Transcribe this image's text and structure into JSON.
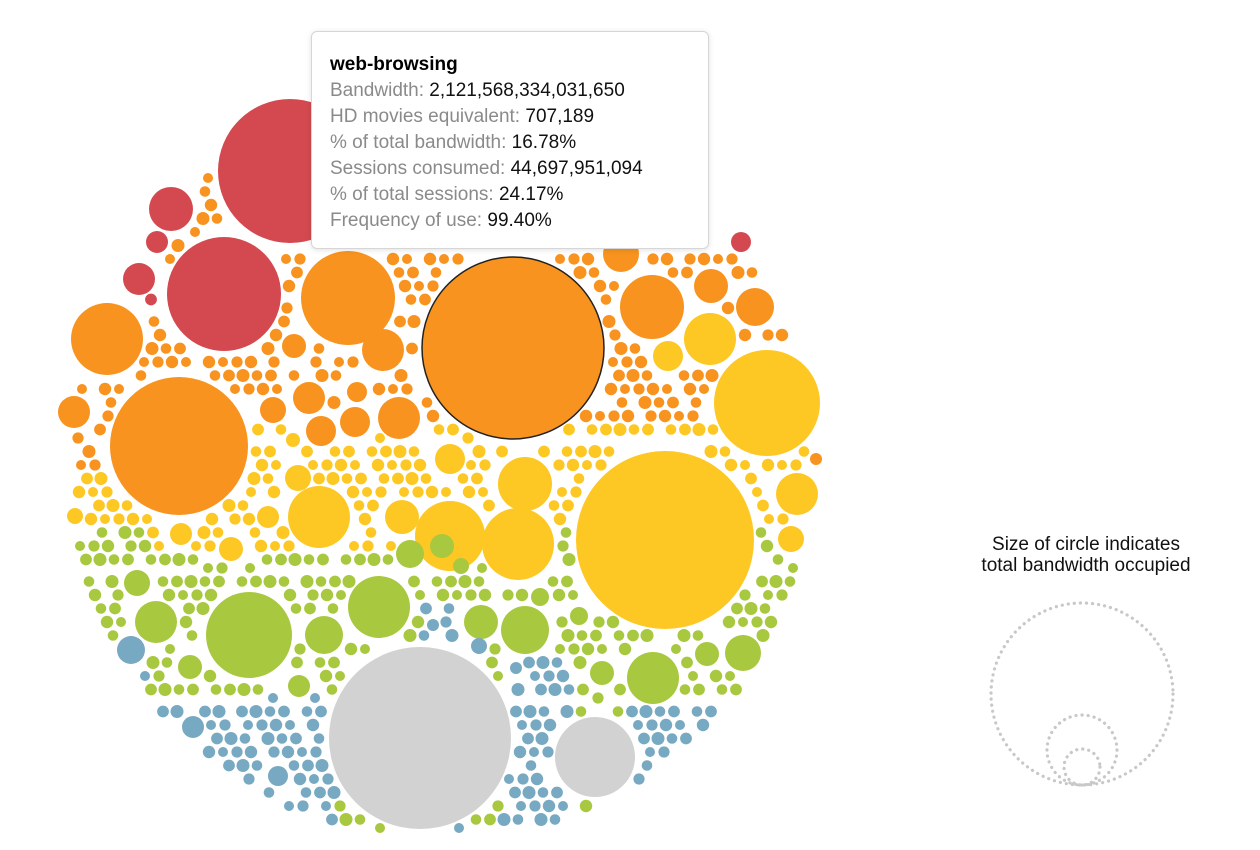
{
  "chart_data": {
    "type": "packed-bubble",
    "size_encodes": "total bandwidth occupied",
    "colors": {
      "red": "#d44950",
      "orange": "#f7931e",
      "yellow": "#fdc823",
      "green": "#a8c840",
      "blue": "#78a9c2",
      "gray": "#d2d2d2"
    },
    "selected": "web-browsing",
    "highlight_stroke": "#222222"
  },
  "tooltip": {
    "title": "web-browsing",
    "rows": [
      {
        "label": "Bandwidth: ",
        "value": "2,121,568,334,031,650"
      },
      {
        "label": "HD movies equivalent: ",
        "value": "707,189"
      },
      {
        "label": "% of total bandwidth: ",
        "value": "16.78%"
      },
      {
        "label": "Sessions consumed: ",
        "value": "44,697,951,094"
      },
      {
        "label": "% of total sessions: ",
        "value": "24.17%"
      },
      {
        "label": "Frequency of use: ",
        "value": "99.40%"
      }
    ]
  },
  "legend": {
    "caption_line1": "Size of circle indicates",
    "caption_line2": "total bandwidth occupied",
    "circle_color": "#c8c8c8"
  }
}
